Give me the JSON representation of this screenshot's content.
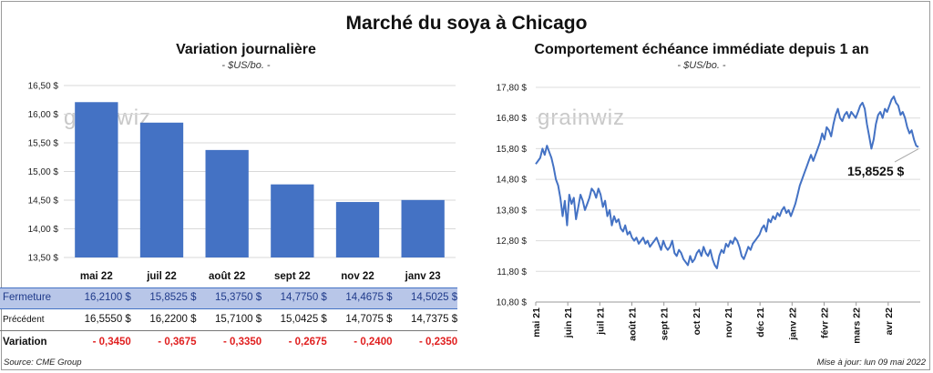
{
  "title": "Marché du soya à Chicago",
  "source": "Source: CME Group",
  "updated": "Mise à jour: lun 09 mai 2022",
  "watermark": "grainwiz",
  "chart_data": [
    {
      "type": "bar",
      "title": "Variation journalière",
      "unit": "- $US/bo. -",
      "categories": [
        "mai 22",
        "juil 22",
        "août 22",
        "sept 22",
        "nov 22",
        "janv 23"
      ],
      "values": [
        16.21,
        15.8525,
        15.375,
        14.775,
        14.4675,
        14.5025
      ],
      "ylim": [
        13.5,
        16.5
      ],
      "yticks": [
        "13,50 $",
        "14,00 $",
        "14,50 $",
        "15,00 $",
        "15,50 $",
        "16,00 $",
        "16,50 $"
      ],
      "color": "#4472c4",
      "table": {
        "rows": [
          {
            "label": "Fermeture",
            "values": [
              "16,2100  $",
              "15,8525  $",
              "15,3750  $",
              "14,7750  $",
              "14,4675  $",
              "14,5025  $"
            ]
          },
          {
            "label": "Précédent",
            "values": [
              "16,5550  $",
              "16,2200  $",
              "15,7100  $",
              "15,0425  $",
              "14,7075  $",
              "14,7375  $"
            ]
          },
          {
            "label": "Variation",
            "values": [
              "- 0,3450",
              "- 0,3675",
              "- 0,3350",
              "- 0,2675",
              "- 0,2400",
              "- 0,2350"
            ]
          }
        ]
      }
    },
    {
      "type": "line",
      "title": "Comportement  échéance immédiate depuis 1 an",
      "unit": "- $US/bo. -",
      "ylim": [
        10.8,
        17.8
      ],
      "yticks": [
        "10,80 $",
        "11,80 $",
        "12,80 $",
        "13,80 $",
        "14,80 $",
        "15,80 $",
        "16,80 $",
        "17,80 $"
      ],
      "xticks": [
        "mai 21",
        "juin 21",
        "juil 21",
        "août 21",
        "sept 21",
        "oct 21",
        "nov 21",
        "déc 21",
        "janv 22",
        "févr 22",
        "mars 22",
        "avr 22"
      ],
      "last_value_label": "15,8525 $",
      "color": "#4472c4",
      "series": [
        {
          "values": [
            15.3,
            15.4,
            15.5,
            15.8,
            15.6,
            15.9,
            15.7,
            15.5,
            15.2,
            14.8,
            14.6,
            14.2,
            13.6,
            14.1,
            13.3,
            14.3,
            14.0,
            14.2,
            13.5,
            13.9,
            14.3,
            14.1,
            13.8,
            14.0,
            14.2,
            14.5,
            14.4,
            14.2,
            14.5,
            14.3,
            13.9,
            14.1,
            13.6,
            13.8,
            13.3,
            13.6,
            13.4,
            13.5,
            13.2,
            13.1,
            13.3,
            13.0,
            13.1,
            12.9,
            12.8,
            12.9,
            12.7,
            12.8,
            12.9,
            12.7,
            12.8,
            12.6,
            12.7,
            12.8,
            12.9,
            12.7,
            12.5,
            12.8,
            12.6,
            12.5,
            12.6,
            12.8,
            12.4,
            12.3,
            12.5,
            12.4,
            12.2,
            12.1,
            12.0,
            12.3,
            12.1,
            12.2,
            12.4,
            12.5,
            12.3,
            12.6,
            12.4,
            12.3,
            12.5,
            12.2,
            12.0,
            11.9,
            12.3,
            12.5,
            12.4,
            12.7,
            12.6,
            12.8,
            12.7,
            12.9,
            12.8,
            12.6,
            12.3,
            12.2,
            12.4,
            12.6,
            12.5,
            12.7,
            12.8,
            12.9,
            13.0,
            13.2,
            13.3,
            13.1,
            13.5,
            13.4,
            13.6,
            13.5,
            13.7,
            13.6,
            13.8,
            13.9,
            13.7,
            13.8,
            13.6,
            13.8,
            14.0,
            14.3,
            14.6,
            14.8,
            15.0,
            15.2,
            15.4,
            15.6,
            15.4,
            15.6,
            15.8,
            16.0,
            16.3,
            16.1,
            16.5,
            16.4,
            16.2,
            16.6,
            16.9,
            17.1,
            16.8,
            16.7,
            16.9,
            17.0,
            16.8,
            17.0,
            16.9,
            16.8,
            17.0,
            17.2,
            17.3,
            17.1,
            16.6,
            16.2,
            15.8,
            16.1,
            16.6,
            16.9,
            17.0,
            16.8,
            17.1,
            17.0,
            17.2,
            17.4,
            17.5,
            17.3,
            17.2,
            16.9,
            17.0,
            16.8,
            16.5,
            16.3,
            16.4,
            16.1,
            15.9,
            15.85
          ]
        }
      ]
    }
  ]
}
